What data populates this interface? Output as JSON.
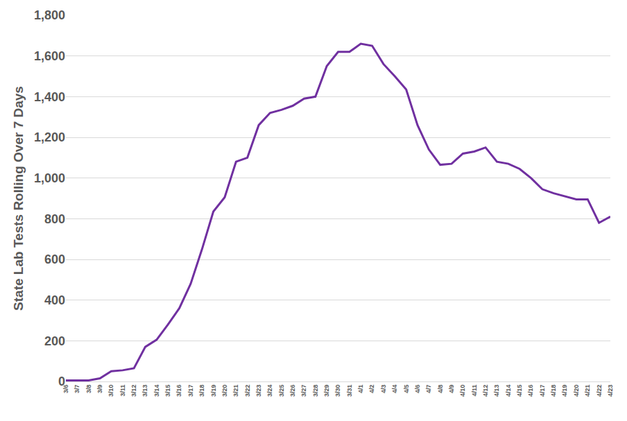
{
  "chart_data": {
    "type": "line",
    "y_label": "State Lab Tests Rolling Over 7 Days",
    "categories": [
      "3/6",
      "3/7",
      "3/8",
      "3/9",
      "3/10",
      "3/11",
      "3/12",
      "3/13",
      "3/14",
      "3/15",
      "3/16",
      "3/17",
      "3/18",
      "3/19",
      "3/20",
      "3/21",
      "3/22",
      "3/23",
      "3/24",
      "3/25",
      "3/26",
      "3/27",
      "3/28",
      "3/29",
      "3/30",
      "3/31",
      "4/1",
      "4/2",
      "4/3",
      "4/4",
      "4/5",
      "4/6",
      "4/7",
      "4/8",
      "4/9",
      "4/10",
      "4/11",
      "4/12",
      "4/13",
      "4/14",
      "4/15",
      "4/16",
      "4/17",
      "4/18",
      "4/19",
      "4/20",
      "4/21",
      "4/22",
      "4/23"
    ],
    "values": [
      5,
      5,
      5,
      15,
      50,
      55,
      65,
      170,
      205,
      280,
      360,
      480,
      650,
      835,
      905,
      1080,
      1100,
      1260,
      1320,
      1335,
      1355,
      1390,
      1400,
      1550,
      1620,
      1620,
      1660,
      1650,
      1560,
      1500,
      1435,
      1260,
      1140,
      1065,
      1070,
      1120,
      1130,
      1150,
      1080,
      1070,
      1045,
      1000,
      945,
      925,
      910,
      895,
      895,
      780,
      810
    ],
    "color": "#7030a0",
    "ylim": [
      0,
      1800
    ],
    "yticks": [
      0,
      200,
      400,
      600,
      800,
      {
        "value": 1000,
        "label": "1,000"
      },
      {
        "value": 1200,
        "label": "1,200"
      },
      {
        "value": 1400,
        "label": "1,400"
      },
      {
        "value": 1600,
        "label": "1,600"
      },
      {
        "value": 1800,
        "label": "1,800"
      }
    ],
    "grid": true
  }
}
